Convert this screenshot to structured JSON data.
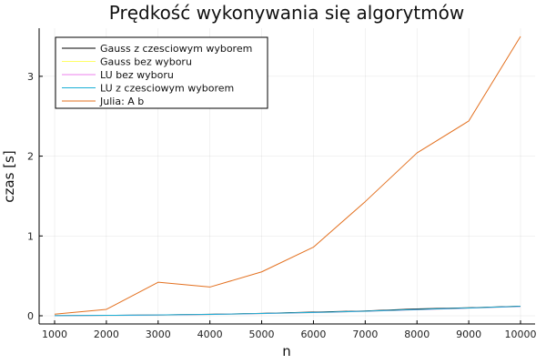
{
  "chart_data": {
    "type": "line",
    "title": "Prędkość wykonywania się algorytmów",
    "xlabel": "n",
    "ylabel": "czas [s]",
    "x": [
      1000,
      2000,
      3000,
      4000,
      5000,
      6000,
      7000,
      8000,
      9000,
      10000
    ],
    "xlim": [
      1000,
      10000
    ],
    "ylim": [
      0,
      3.5
    ],
    "xticks": [
      1000,
      2000,
      3000,
      4000,
      5000,
      6000,
      7000,
      8000,
      9000,
      10000
    ],
    "xtick_labels": [
      "1000",
      "2000",
      "3000",
      "4000",
      "5000",
      "6000",
      "7000",
      "8000",
      "9000",
      "10000"
    ],
    "yticks": [
      0,
      1,
      2,
      3
    ],
    "ytick_labels": [
      "0",
      "1",
      "2",
      "3"
    ],
    "grid": true,
    "legend_position": "top-left",
    "series": [
      {
        "name": "Gauss z czesciowym wyborem",
        "color": "#000000",
        "values": [
          0.002,
          0.005,
          0.01,
          0.018,
          0.03,
          0.045,
          0.06,
          0.085,
          0.1,
          0.12
        ]
      },
      {
        "name": "Gauss bez wyboru",
        "color": "#ffff66",
        "values": [
          0.002,
          0.004,
          0.009,
          0.016,
          0.027,
          0.04,
          0.055,
          0.075,
          0.095,
          0.115
        ]
      },
      {
        "name": "LU bez wyboru",
        "color": "#ee82ee",
        "values": [
          0.002,
          0.004,
          0.009,
          0.016,
          0.027,
          0.04,
          0.055,
          0.075,
          0.095,
          0.115
        ]
      },
      {
        "name": "LU z czesciowym wyborem",
        "color": "#1ab0d6",
        "values": [
          0.002,
          0.005,
          0.01,
          0.017,
          0.028,
          0.042,
          0.057,
          0.078,
          0.097,
          0.118
        ]
      },
      {
        "name": "Julia: A  b",
        "color": "#e3701f",
        "values": [
          0.02,
          0.08,
          0.42,
          0.36,
          0.55,
          0.86,
          1.43,
          2.04,
          2.44,
          3.5
        ]
      }
    ]
  }
}
